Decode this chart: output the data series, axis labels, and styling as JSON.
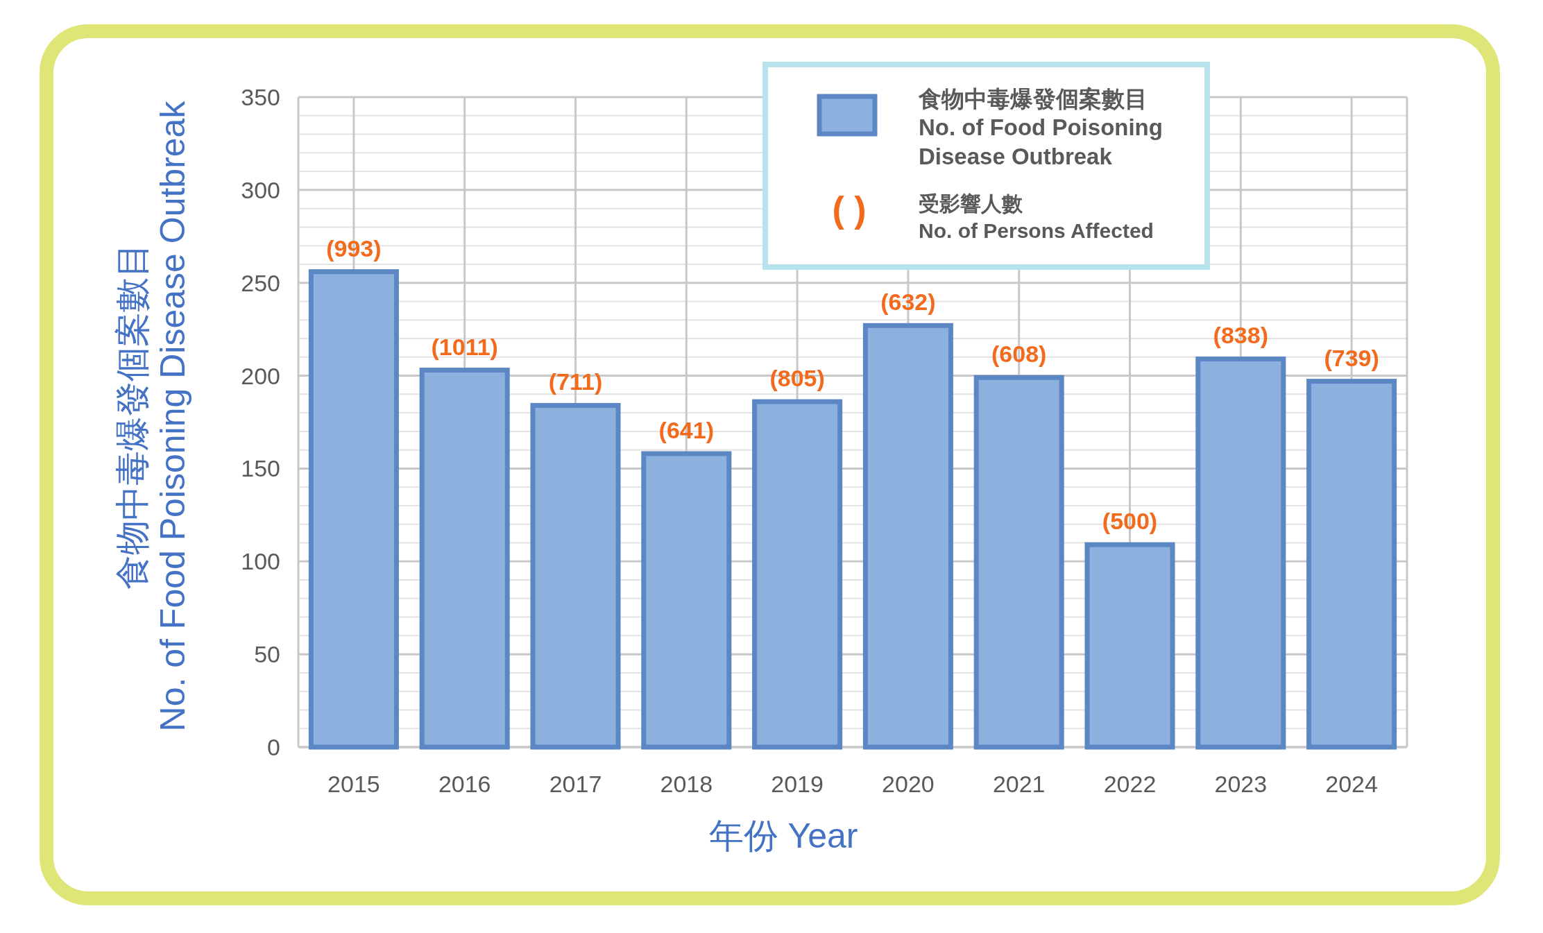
{
  "chart_data": {
    "type": "bar",
    "xlabel": "年份 Year",
    "ylabel": "食物中毒爆發個案數目\nNo. of Food Poisoning Disease Outbreak",
    "categories": [
      "2015",
      "2016",
      "2017",
      "2018",
      "2019",
      "2020",
      "2021",
      "2022",
      "2023",
      "2024"
    ],
    "series": [
      {
        "name": "食物中毒爆發個案數目\nNo. of Food Poisoning\nDisease Outbreak",
        "color": "#8db1df",
        "values": [
          256,
          203,
          184,
          158,
          186,
          227,
          199,
          109,
          209,
          197
        ]
      }
    ],
    "annotations": [
      "(   )",
      "受影響人數\nNo. of Persons Affected",
      {
        "text": "(993)",
        "x": "2015",
        "y": 256
      },
      {
        "text": "(1011)",
        "x": "2016",
        "y": 203
      },
      {
        "text": "(711)",
        "x": "2017",
        "y": 184
      },
      {
        "text": "(641)",
        "x": "2018",
        "y": 158
      },
      {
        "text": "(805)",
        "x": "2019",
        "y": 186
      },
      {
        "text": "(632)",
        "x": "2020",
        "y": 227
      },
      {
        "text": "(608)",
        "x": "2021",
        "y": 199
      },
      {
        "text": "(500)",
        "x": "2022",
        "y": 109
      },
      {
        "text": "(838)",
        "x": "2023",
        "y": 209
      },
      {
        "text": "(739)",
        "x": "2024",
        "y": 197
      }
    ],
    "ylim": [
      0,
      350
    ],
    "yticks": [
      0,
      {
        "value": 10,
        "label": null
      },
      {
        "value": 20,
        "label": null
      },
      {
        "value": 30,
        "label": null
      },
      {
        "value": 40,
        "label": null
      },
      50,
      {
        "value": 60,
        "label": null
      },
      {
        "value": 70,
        "label": null
      },
      {
        "value": 80,
        "label": null
      },
      {
        "value": 90,
        "label": null
      },
      100,
      {
        "value": 110,
        "label": null
      },
      {
        "value": 120,
        "label": null
      },
      {
        "value": 130,
        "label": null
      },
      {
        "value": 140,
        "label": null
      },
      150,
      {
        "value": 160,
        "label": null
      },
      {
        "value": 170,
        "label": null
      },
      {
        "value": 180,
        "label": null
      },
      {
        "value": 190,
        "label": null
      },
      200,
      {
        "value": 210,
        "label": null
      },
      {
        "value": 220,
        "label": null
      },
      {
        "value": 230,
        "label": null
      },
      {
        "value": 240,
        "label": null
      },
      250,
      {
        "value": 260,
        "label": null
      },
      {
        "value": 270,
        "label": null
      },
      {
        "value": 280,
        "label": null
      },
      {
        "value": 290,
        "label": null
      },
      300,
      {
        "value": 310,
        "label": null
      },
      {
        "value": 320,
        "label": null
      },
      {
        "value": 330,
        "label": null
      },
      {
        "value": 340,
        "label": null
      },
      350
    ],
    "grid": true,
    "legend": "top right"
  }
}
